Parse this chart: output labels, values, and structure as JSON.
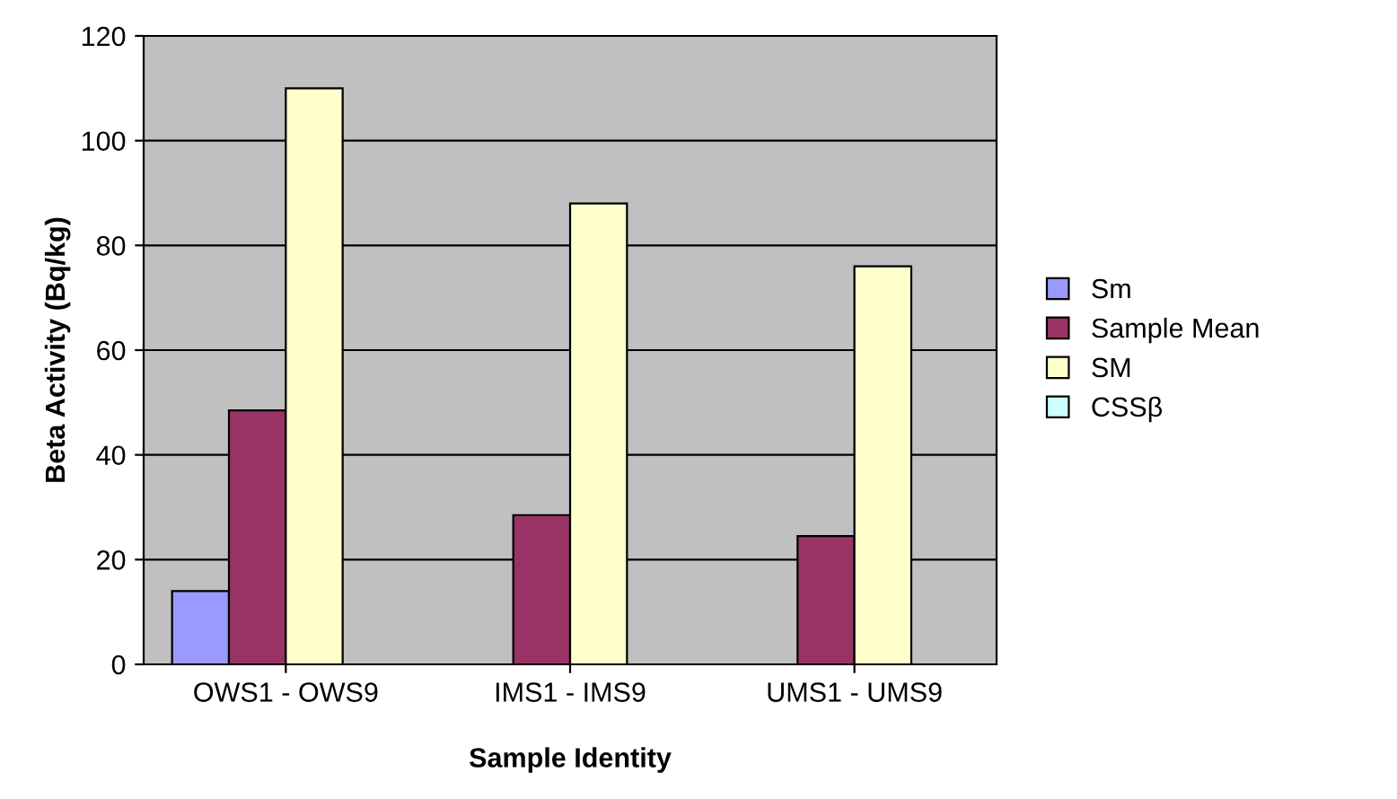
{
  "chart_data": {
    "type": "bar",
    "xlabel": "Sample Identity",
    "ylabel": "Beta Activity (Bq/kg)",
    "categories": [
      "OWS1 - OWS9",
      "IMS1 - IMS9",
      "UMS1 - UMS9"
    ],
    "series": [
      {
        "name": "Sm",
        "color": "#9999ff",
        "values": [
          14,
          null,
          null
        ]
      },
      {
        "name": "Sample Mean",
        "color": "#993366",
        "values": [
          48.5,
          28.5,
          24.5
        ]
      },
      {
        "name": "SM",
        "color": "#ffffcc",
        "values": [
          110,
          88,
          76
        ]
      },
      {
        "name": "CSSβ",
        "color": "#ccffff",
        "values": [
          null,
          null,
          null
        ]
      }
    ],
    "ylim": [
      0,
      120
    ],
    "yticks": [
      0,
      20,
      40,
      60,
      80,
      100,
      120
    ],
    "grid": "y",
    "legend": "right"
  }
}
